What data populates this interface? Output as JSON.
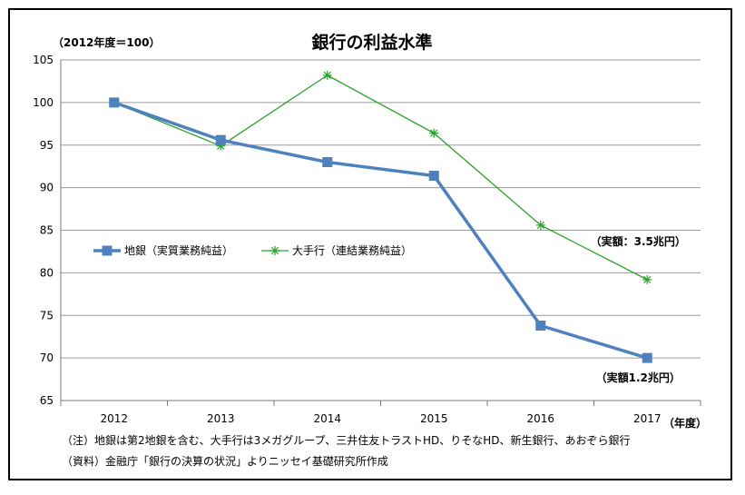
{
  "chart_data": {
    "type": "line",
    "title": "銀行の利益水準",
    "unit_label": "（2012年度＝100）",
    "x_axis_unit": "（年度）",
    "categories": [
      "2012",
      "2013",
      "2014",
      "2015",
      "2016",
      "2017"
    ],
    "ylim": [
      65,
      105
    ],
    "yticks": [
      "65",
      "70",
      "75",
      "80",
      "85",
      "90",
      "95",
      "100",
      "105"
    ],
    "grid": true,
    "legend_position": "center-left",
    "series": [
      {
        "name": "地銀（実質業務純益）",
        "values": [
          100,
          95.6,
          93.0,
          91.4,
          73.8,
          70.0
        ],
        "color": "#4f81bd",
        "marker": "square"
      },
      {
        "name": "大手行（連結業務純益）",
        "values": [
          100,
          94.9,
          103.2,
          96.4,
          85.6,
          79.2
        ],
        "color": "#2ca02c",
        "marker": "star"
      }
    ],
    "annotations": [
      {
        "text": "（実額：3.5兆円）",
        "series": 1,
        "category": "2017"
      },
      {
        "text": "（実額1.2兆円）",
        "series": 0,
        "category": "2017"
      }
    ]
  },
  "notes": {
    "note1": "（注）地銀は第2地銀を含む、大手行は3メガグループ、三井住友トラストHD、りそなHD、新生銀行、あおぞら銀行",
    "note2": "（資料）金融庁「銀行の決算の状況」よりニッセイ基礎研究所作成"
  }
}
